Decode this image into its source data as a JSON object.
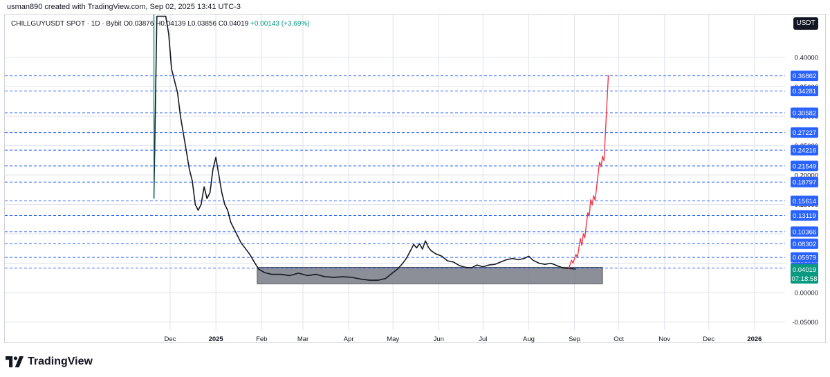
{
  "attribution": "usman890 created with TradingView.com, Sep 02, 2025 13:41 UTC-3",
  "header": {
    "symbol": "CHILLGUYUSDT SPOT · 1D · Bybit",
    "open": "O0.03876",
    "high": "H0.04139",
    "low": "L0.03856",
    "close": "C0.04019",
    "change": "+0.00143 (+3.69%)",
    "currency": "USDT"
  },
  "brand": "TradingView",
  "colors": {
    "candle": "#131722",
    "level_line": "#2962ff",
    "label_bg": "#2962ff",
    "projection": "#f23645",
    "zone_fill": "#787b86",
    "grid": "#e0e3eb",
    "last_price_bg": "#089981"
  },
  "chart_data": {
    "type": "line",
    "title": "CHILLGUYUSDT SPOT · 1D · Bybit",
    "ylim": [
      -0.07,
      0.45
    ],
    "y_ticks": [
      "0.40000",
      "0.35000",
      "0.30000",
      "0.25000",
      "0.20000",
      "0.15000",
      "0.10000",
      "0.05000",
      "0.00000",
      "-0.05000"
    ],
    "y_tick_values": [
      0.4,
      0.35,
      0.3,
      0.25,
      0.2,
      0.15,
      0.1,
      0.05,
      0.0,
      -0.05
    ],
    "x_tick_labels": [
      "Dec",
      "2025",
      "Feb",
      "Mar",
      "Apr",
      "May",
      "Jun",
      "Jul",
      "Aug",
      "Sep",
      "Oct",
      "Nov",
      "Dec",
      "2026"
    ],
    "x_tick_dates": [
      "2024-12-01",
      "2025-01-01",
      "2025-02-01",
      "2025-03-01",
      "2025-04-01",
      "2025-05-01",
      "2025-06-01",
      "2025-07-01",
      "2025-08-01",
      "2025-09-01",
      "2025-10-01",
      "2025-11-01",
      "2025-12-01",
      "2026-01-01"
    ],
    "x_range": [
      "2024-11-01",
      "2026-02-01"
    ],
    "horizontal_levels": [
      "0.36862",
      "0.34281",
      "0.30582",
      "0.27227",
      "0.24216",
      "0.21549",
      "0.18797",
      "0.15614",
      "0.13119",
      "0.10366",
      "0.08302",
      "0.05979",
      "0.04172"
    ],
    "last_price": "0.04019",
    "countdown": "07:18:58",
    "price_series": {
      "name": "CHILLGUYUSDT",
      "points": [
        [
          "2024-11-20",
          0.16
        ],
        [
          "2024-11-22",
          0.47
        ],
        [
          "2024-11-24",
          0.55
        ],
        [
          "2024-11-26",
          0.5
        ],
        [
          "2024-11-28",
          0.47
        ],
        [
          "2024-11-30",
          0.44
        ],
        [
          "2024-12-02",
          0.38
        ],
        [
          "2024-12-04",
          0.36
        ],
        [
          "2024-12-06",
          0.34
        ],
        [
          "2024-12-08",
          0.3
        ],
        [
          "2024-12-10",
          0.27
        ],
        [
          "2024-12-12",
          0.24
        ],
        [
          "2024-12-14",
          0.21
        ],
        [
          "2024-12-16",
          0.19
        ],
        [
          "2024-12-18",
          0.15
        ],
        [
          "2024-12-20",
          0.14
        ],
        [
          "2024-12-22",
          0.15
        ],
        [
          "2024-12-24",
          0.18
        ],
        [
          "2024-12-26",
          0.16
        ],
        [
          "2024-12-28",
          0.17
        ],
        [
          "2024-12-30",
          0.21
        ],
        [
          "2025-01-01",
          0.23
        ],
        [
          "2025-01-03",
          0.2
        ],
        [
          "2025-01-05",
          0.17
        ],
        [
          "2025-01-07",
          0.15
        ],
        [
          "2025-01-09",
          0.14
        ],
        [
          "2025-01-11",
          0.12
        ],
        [
          "2025-01-13",
          0.11
        ],
        [
          "2025-01-15",
          0.1
        ],
        [
          "2025-01-18",
          0.085
        ],
        [
          "2025-01-21",
          0.075
        ],
        [
          "2025-01-24",
          0.065
        ],
        [
          "2025-01-27",
          0.052
        ],
        [
          "2025-01-30",
          0.04
        ],
        [
          "2025-02-03",
          0.034
        ],
        [
          "2025-02-08",
          0.031
        ],
        [
          "2025-02-14",
          0.031
        ],
        [
          "2025-02-20",
          0.029
        ],
        [
          "2025-02-26",
          0.033
        ],
        [
          "2025-03-04",
          0.029
        ],
        [
          "2025-03-10",
          0.031
        ],
        [
          "2025-03-16",
          0.027
        ],
        [
          "2025-03-22",
          0.026
        ],
        [
          "2025-03-28",
          0.027
        ],
        [
          "2025-04-03",
          0.026
        ],
        [
          "2025-04-09",
          0.023
        ],
        [
          "2025-04-15",
          0.021
        ],
        [
          "2025-04-21",
          0.021
        ],
        [
          "2025-04-26",
          0.024
        ],
        [
          "2025-04-30",
          0.032
        ],
        [
          "2025-05-04",
          0.04
        ],
        [
          "2025-05-07",
          0.048
        ],
        [
          "2025-05-10",
          0.058
        ],
        [
          "2025-05-13",
          0.072
        ],
        [
          "2025-05-15",
          0.082
        ],
        [
          "2025-05-17",
          0.076
        ],
        [
          "2025-05-19",
          0.083
        ],
        [
          "2025-05-21",
          0.074
        ],
        [
          "2025-05-23",
          0.088
        ],
        [
          "2025-05-25",
          0.077
        ],
        [
          "2025-05-27",
          0.071
        ],
        [
          "2025-05-30",
          0.066
        ],
        [
          "2025-06-03",
          0.062
        ],
        [
          "2025-06-07",
          0.054
        ],
        [
          "2025-06-11",
          0.052
        ],
        [
          "2025-06-15",
          0.046
        ],
        [
          "2025-06-19",
          0.043
        ],
        [
          "2025-06-23",
          0.042
        ],
        [
          "2025-06-27",
          0.047
        ],
        [
          "2025-07-01",
          0.044
        ],
        [
          "2025-07-05",
          0.047
        ],
        [
          "2025-07-09",
          0.048
        ],
        [
          "2025-07-13",
          0.052
        ],
        [
          "2025-07-17",
          0.056
        ],
        [
          "2025-07-21",
          0.058
        ],
        [
          "2025-07-25",
          0.056
        ],
        [
          "2025-07-29",
          0.058
        ],
        [
          "2025-08-01",
          0.062
        ],
        [
          "2025-08-04",
          0.055
        ],
        [
          "2025-08-08",
          0.05
        ],
        [
          "2025-08-12",
          0.048
        ],
        [
          "2025-08-16",
          0.05
        ],
        [
          "2025-08-20",
          0.046
        ],
        [
          "2025-08-24",
          0.042
        ],
        [
          "2025-08-28",
          0.041
        ],
        [
          "2025-09-02",
          0.04
        ]
      ]
    },
    "projection_series": {
      "points": [
        [
          "2025-08-28",
          0.04
        ],
        [
          "2025-08-30",
          0.055
        ],
        [
          "2025-08-31",
          0.05
        ],
        [
          "2025-09-02",
          0.065
        ],
        [
          "2025-09-03",
          0.06
        ],
        [
          "2025-09-05",
          0.092
        ],
        [
          "2025-09-06",
          0.08
        ],
        [
          "2025-09-07",
          0.1
        ],
        [
          "2025-09-08",
          0.093
        ],
        [
          "2025-09-10",
          0.136
        ],
        [
          "2025-09-11",
          0.13
        ],
        [
          "2025-09-12",
          0.158
        ],
        [
          "2025-09-13",
          0.149
        ],
        [
          "2025-09-14",
          0.165
        ],
        [
          "2025-09-15",
          0.157
        ],
        [
          "2025-09-18",
          0.222
        ],
        [
          "2025-09-19",
          0.214
        ],
        [
          "2025-09-20",
          0.232
        ],
        [
          "2025-09-21",
          0.224
        ],
        [
          "2025-09-24",
          0.37
        ]
      ]
    },
    "zone": {
      "start": "2025-01-29",
      "end": "2025-09-20",
      "top": 0.043,
      "bottom": 0.015
    }
  }
}
